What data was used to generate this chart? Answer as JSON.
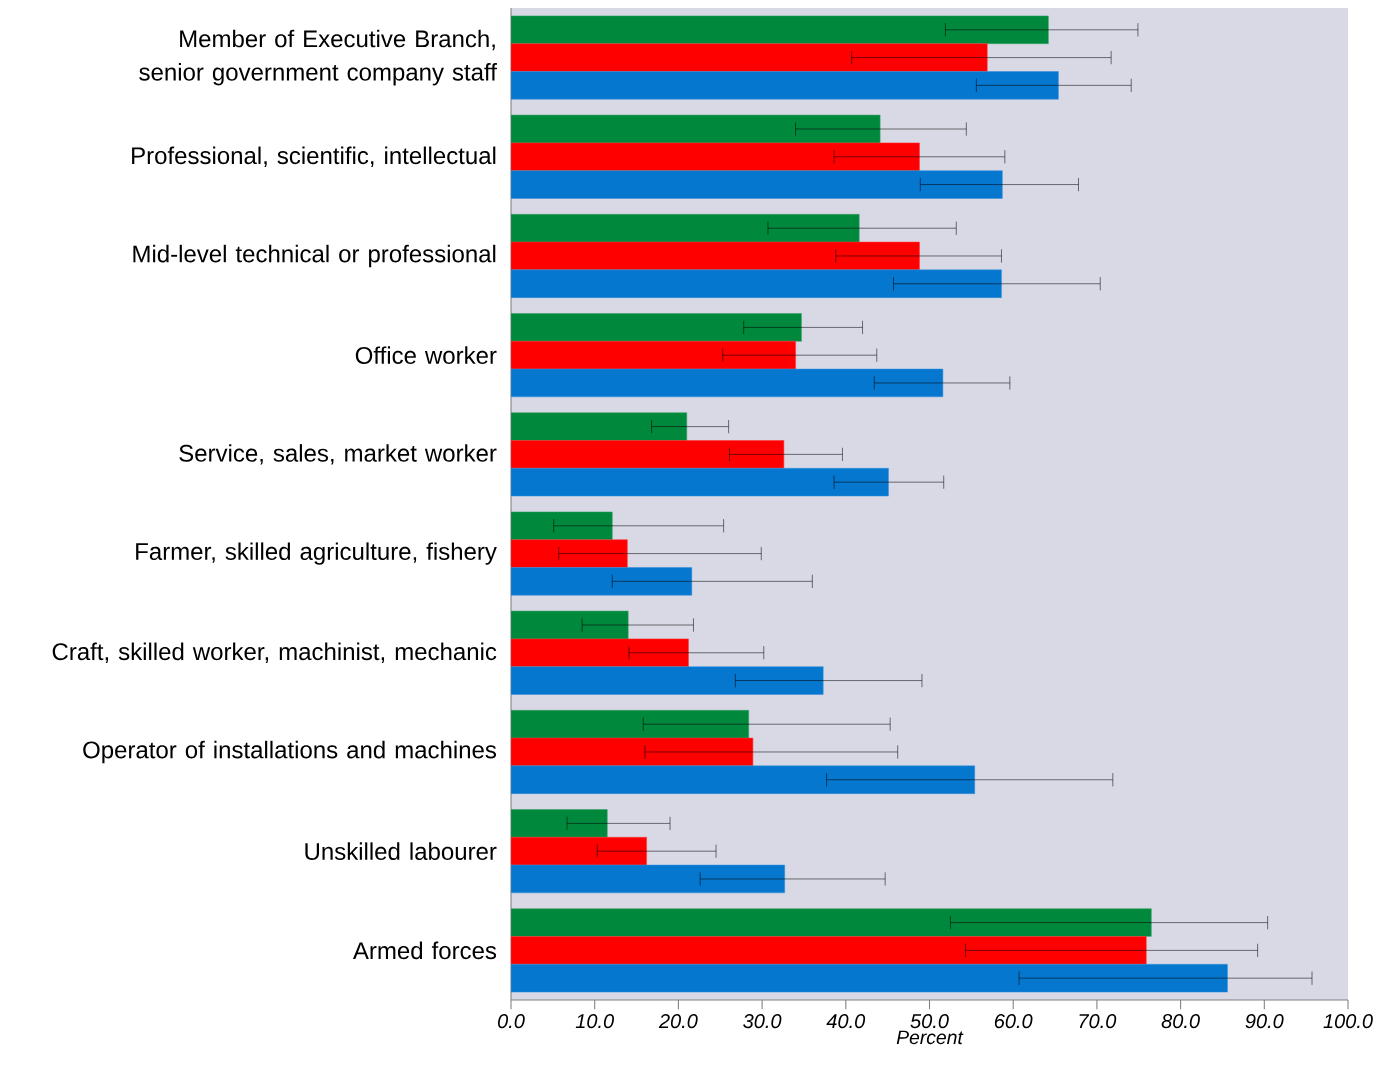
{
  "chart_data": {
    "type": "bar",
    "orientation": "horizontal",
    "xlabel": "Percent",
    "categories": [
      "Member of Executive Branch, senior government company staff",
      "Professional, scientific, intellectual",
      "Mid-level technical or professional",
      "Office worker",
      "Service, sales, market worker",
      "Farmer, skilled agriculture, fishery",
      "Craft, skilled worker, machinist, mechanic",
      "Operator of installations and machines",
      "Unskilled labourer",
      "Armed forces"
    ],
    "series": [
      {
        "color": "#00893d",
        "values": [
          64.2,
          44.1,
          41.6,
          34.7,
          21.0,
          12.1,
          14.0,
          28.4,
          11.5,
          76.5
        ],
        "errors": [
          [
            51.9,
            74.9
          ],
          [
            34.0,
            54.4
          ],
          [
            30.7,
            53.2
          ],
          [
            27.8,
            42.0
          ],
          [
            16.8,
            26.0
          ],
          [
            5.1,
            25.4
          ],
          [
            8.5,
            21.8
          ],
          [
            15.8,
            45.3
          ],
          [
            6.7,
            19.0
          ],
          [
            52.5,
            90.4
          ]
        ]
      },
      {
        "color": "#ff0000",
        "values": [
          56.9,
          48.8,
          48.8,
          34.0,
          32.6,
          13.9,
          21.2,
          28.9,
          16.2,
          75.9
        ],
        "errors": [
          [
            40.7,
            71.7
          ],
          [
            38.6,
            59.0
          ],
          [
            38.8,
            58.6
          ],
          [
            25.3,
            43.7
          ],
          [
            26.1,
            39.6
          ],
          [
            5.7,
            29.9
          ],
          [
            14.1,
            30.2
          ],
          [
            16.0,
            46.2
          ],
          [
            10.3,
            24.5
          ],
          [
            54.3,
            89.2
          ]
        ]
      },
      {
        "color": "#0577cf",
        "values": [
          65.4,
          58.7,
          58.6,
          51.6,
          45.1,
          21.6,
          37.3,
          55.4,
          32.7,
          85.6
        ],
        "errors": [
          [
            55.6,
            74.1
          ],
          [
            48.9,
            67.8
          ],
          [
            45.7,
            70.4
          ],
          [
            43.4,
            59.6
          ],
          [
            38.6,
            51.7
          ],
          [
            12.1,
            36.0
          ],
          [
            26.8,
            49.1
          ],
          [
            37.7,
            71.9
          ],
          [
            22.6,
            44.7
          ],
          [
            60.7,
            95.7
          ]
        ]
      }
    ],
    "xlim": [
      0,
      100
    ],
    "xticks": [
      {
        "value": 0,
        "label": "0.0"
      },
      {
        "value": 10,
        "label": "10.0"
      },
      {
        "value": 20,
        "label": "20.0"
      },
      {
        "value": 30,
        "label": "30.0"
      },
      {
        "value": 40,
        "label": "40.0"
      },
      {
        "value": 50,
        "label": "50.0"
      },
      {
        "value": 60,
        "label": "60.0"
      },
      {
        "value": 70,
        "label": "70.0"
      },
      {
        "value": 80,
        "label": "80.0"
      },
      {
        "value": 90,
        "label": "90.0"
      },
      {
        "value": 100,
        "label": "100.0"
      }
    ]
  }
}
